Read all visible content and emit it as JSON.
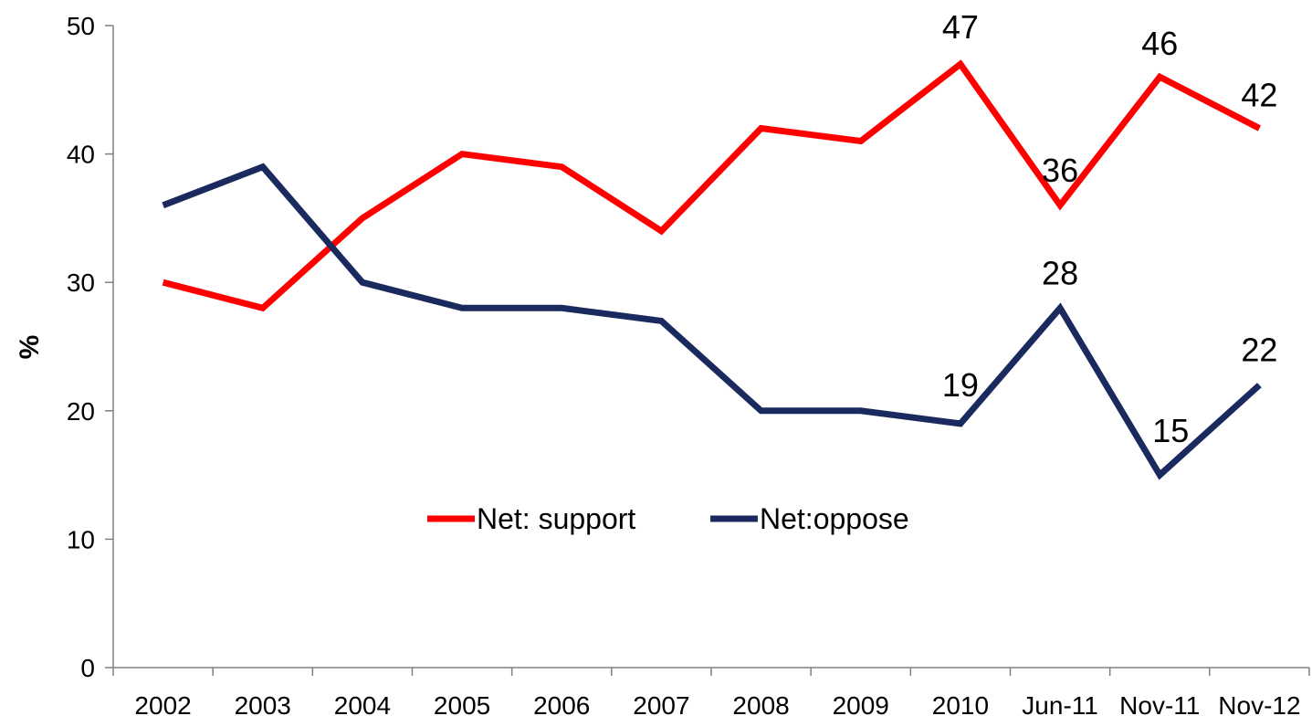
{
  "chart_data": {
    "type": "line",
    "title": "",
    "xlabel": "",
    "ylabel": "%",
    "ylim": [
      0,
      50
    ],
    "yticks": [
      0,
      10,
      20,
      30,
      40,
      50
    ],
    "grid": false,
    "legend_position": "center",
    "categories": [
      "2002",
      "2003",
      "2004",
      "2005",
      "2006",
      "2007",
      "2008",
      "2009",
      "2010",
      "Jun-11",
      "Nov-11",
      "Nov-12"
    ],
    "series": [
      {
        "name": "Net: support",
        "color": "#ff0000",
        "values": [
          30,
          28,
          35,
          40,
          39,
          34,
          42,
          41,
          47,
          36,
          46,
          42
        ],
        "labeled_indices": [
          8,
          9,
          10,
          11
        ]
      },
      {
        "name": "Net:oppose",
        "color": "#1a2a5e",
        "values": [
          36,
          39,
          30,
          28,
          28,
          27,
          20,
          20,
          19,
          28,
          15,
          22
        ],
        "labeled_indices": [
          8,
          9,
          10,
          11
        ]
      }
    ]
  }
}
